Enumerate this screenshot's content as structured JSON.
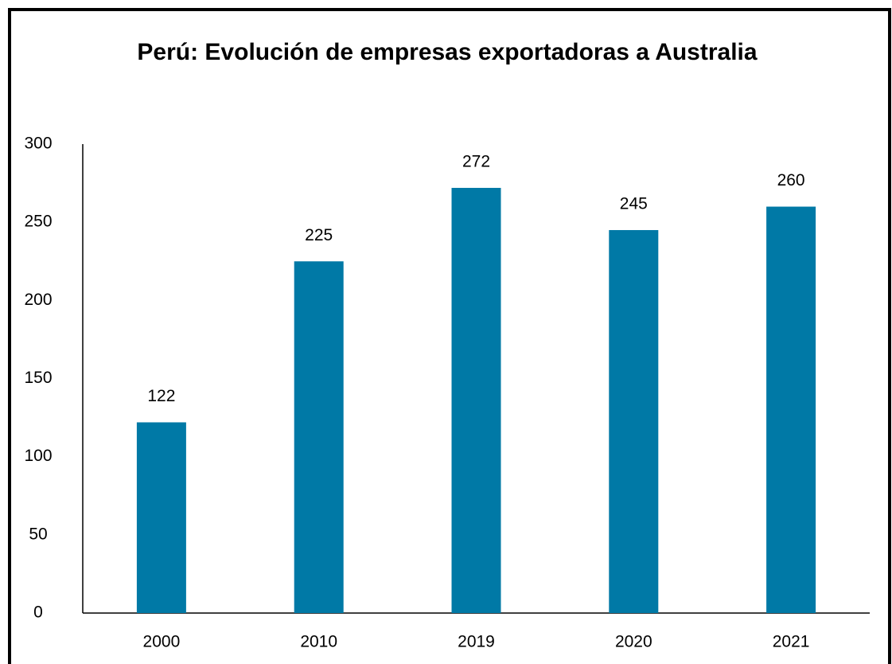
{
  "chart_data": {
    "type": "bar",
    "title": "Perú: Evolución de empresas exportadoras a Australia",
    "categories": [
      "2000",
      "2010",
      "2019",
      "2020",
      "2021"
    ],
    "values": [
      122,
      225,
      272,
      245,
      260
    ],
    "color": "#0079a6",
    "ylim": [
      0,
      300
    ],
    "yticks": [
      0,
      50,
      100,
      150,
      200,
      250,
      300
    ],
    "grid": false
  }
}
